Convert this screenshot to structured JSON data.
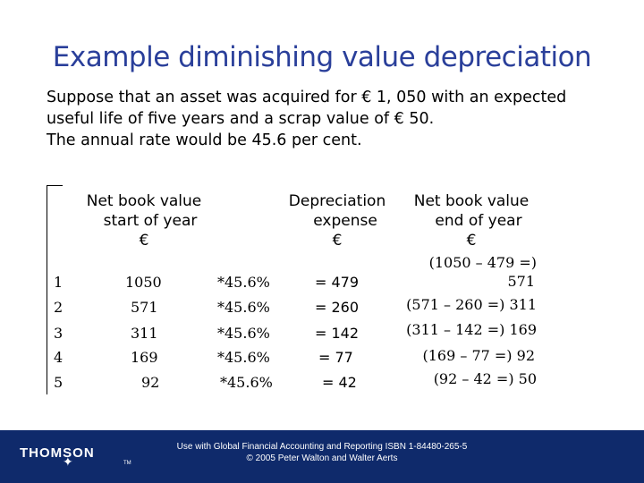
{
  "title": "Example diminishing value depreciation",
  "intro": [
    "Suppose that an asset was acquired for € 1, 050 with an expected",
    "useful life of five years and a scrap value of € 50.",
    "The annual rate would be 45.6 per cent."
  ],
  "headers": {
    "start": [
      "Net book value",
      "start of year",
      "€"
    ],
    "expense": [
      "Depreciation",
      "expense",
      "€"
    ],
    "end": [
      "Net book value",
      "end of year",
      "€"
    ]
  },
  "rows": [
    {
      "year": "1",
      "start": "1050",
      "rate": "*45.6%",
      "dep": "= 479",
      "end_a": "(1050 – 479 =)",
      "end_b": "571"
    },
    {
      "year": "2",
      "start": "571",
      "rate": "*45.6%",
      "dep": "= 260",
      "end_a": "(571 – 260 =) 311"
    },
    {
      "year": "3",
      "start": "311",
      "rate": "*45.6%",
      "dep": "= 142",
      "end_a": "(311 – 142 =) 169"
    },
    {
      "year": "4",
      "start": "169",
      "rate": "*45.6%",
      "dep": "= 77",
      "end_a": "(169 – 77 =) 92"
    },
    {
      "year": "5",
      "start": "92",
      "rate": "*45.6%",
      "dep": "= 42",
      "end_a": "(92 – 42 =) 50"
    }
  ],
  "footer": {
    "logo": "THOMSON",
    "tm": "TM",
    "line1": "Use with Global Financial Accounting and Reporting ISBN 1-84480-265-5",
    "line2": "© 2005 Peter Walton and Walter Aerts"
  },
  "colors": {
    "title": "#2a3f9a",
    "footer_bg": "#0f2a6b"
  }
}
